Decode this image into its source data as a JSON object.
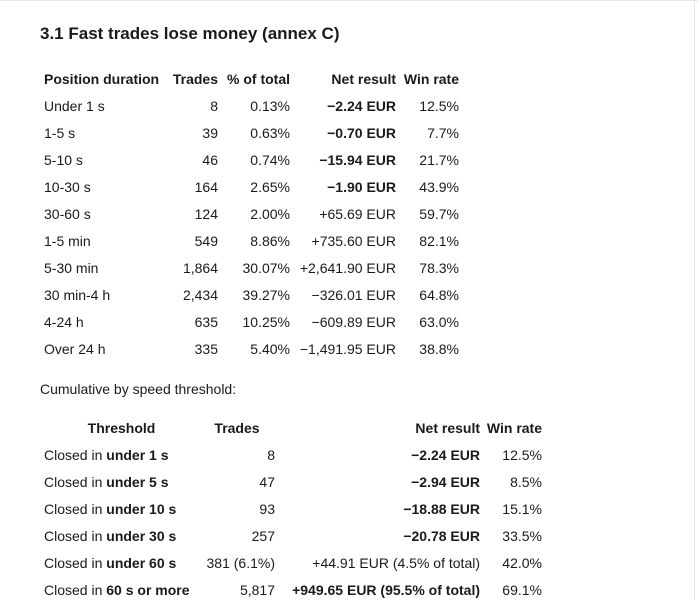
{
  "section": {
    "title": "3.1 Fast trades lose money (annex C)"
  },
  "duration_table": {
    "headers": [
      "Position duration",
      "Trades",
      "% of total",
      "Net result",
      "Win rate"
    ],
    "rows": [
      [
        "Under 1 s",
        "8",
        "0.13%",
        "−2.24 EUR",
        "12.5%"
      ],
      [
        "1-5 s",
        "39",
        "0.63%",
        "−0.70 EUR",
        "7.7%"
      ],
      [
        "5-10 s",
        "46",
        "0.74%",
        "−15.94 EUR",
        "21.7%"
      ],
      [
        "10-30 s",
        "164",
        "2.65%",
        "−1.90 EUR",
        "43.9%"
      ],
      [
        "30-60 s",
        "124",
        "2.00%",
        "+65.69 EUR",
        "59.7%"
      ],
      [
        "1-5 min",
        "549",
        "8.86%",
        "+735.60 EUR",
        "82.1%"
      ],
      [
        "5-30 min",
        "1,864",
        "30.07%",
        "+2,641.90 EUR",
        "78.3%"
      ],
      [
        "30 min-4 h",
        "2,434",
        "39.27%",
        "−326.01 EUR",
        "64.8%"
      ],
      [
        "4-24 h",
        "635",
        "10.25%",
        "−609.89 EUR",
        "63.0%"
      ],
      [
        "Over 24 h",
        "335",
        "5.40%",
        "−1,491.95 EUR",
        "38.8%"
      ]
    ],
    "bold_net_rows": 4
  },
  "cumulative": {
    "intro": "Cumulative by speed threshold:",
    "headers": [
      "Threshold",
      "Trades",
      "Net result",
      "Win rate"
    ],
    "rows": [
      {
        "prefix": "Closed in ",
        "bold": "under 1 s",
        "trades": "8",
        "net": "−2.24 EUR",
        "net_bold": true,
        "win": "12.5%"
      },
      {
        "prefix": "Closed in ",
        "bold": "under 5 s",
        "trades": "47",
        "net": "−2.94 EUR",
        "net_bold": true,
        "win": "8.5%"
      },
      {
        "prefix": "Closed in ",
        "bold": "under 10 s",
        "trades": "93",
        "net": "−18.88 EUR",
        "net_bold": true,
        "win": "15.1%"
      },
      {
        "prefix": "Closed in ",
        "bold": "under 30 s",
        "trades": "257",
        "net": "−20.78 EUR",
        "net_bold": true,
        "win": "33.5%"
      },
      {
        "prefix": "Closed in ",
        "bold": "under 60 s",
        "trades": "381 (6.1%)",
        "net": "+44.91 EUR (4.5% of total)",
        "net_bold": false,
        "win": "42.0%"
      },
      {
        "prefix": "Closed in ",
        "bold": "60 s or more",
        "trades": "5,817",
        "net": "+949.65 EUR (95.5% of total)",
        "net_bold": true,
        "win": "69.1%"
      }
    ]
  }
}
